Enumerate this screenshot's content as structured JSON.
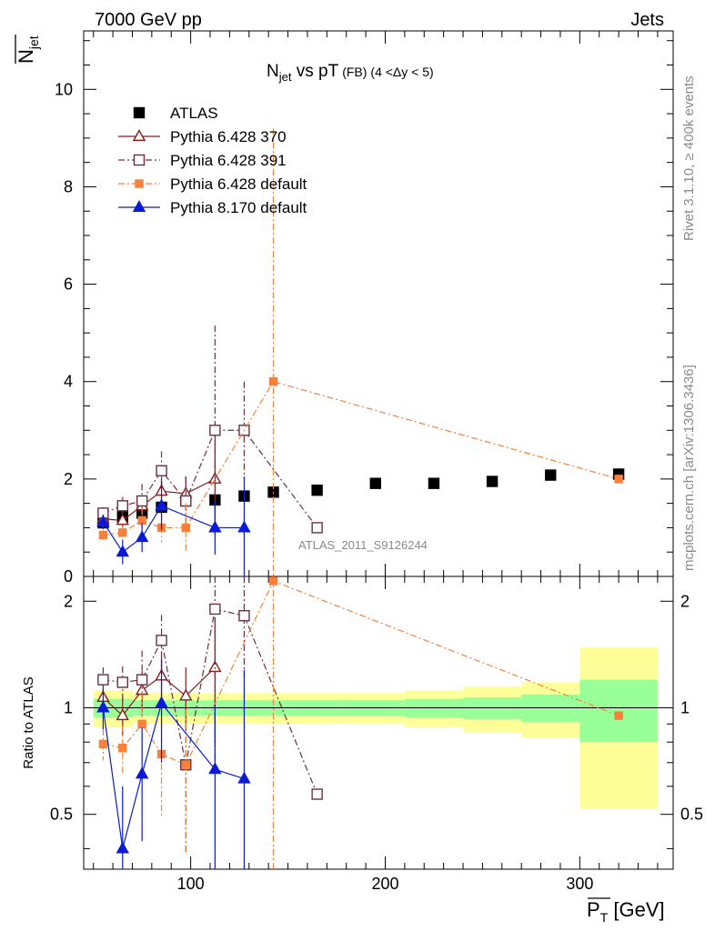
{
  "header": {
    "left": "7000 GeV pp",
    "right": "Jets",
    "side_top": "Rivet 3.1.10, ≥ 400k events",
    "side_bottom": "mcplots.cern.ch [arXiv:1306.3436]",
    "analysis_id": "ATLAS_2011_S9126244"
  },
  "chart_data": [
    {
      "type": "line",
      "title": "N",
      "title_sub": "jet",
      "title_rest": " vs pT",
      "title_fb": "(FB)",
      "title_range": "(4 <Δy < 5)",
      "ylabel_main": "N",
      "ylabel_sub": "jet",
      "xlim": [
        45,
        348
      ],
      "ylim": [
        0,
        11.2
      ],
      "x_ticks": [
        100,
        200,
        300
      ],
      "y_ticks": [
        0,
        2,
        4,
        6,
        8,
        10
      ],
      "y_tick_labels": [
        "0",
        "2",
        "4",
        "6",
        "8",
        "10"
      ],
      "legend_position": "top-left",
      "series": [
        {
          "name": "ATLAS",
          "color": "#000000",
          "marker": "square-filled",
          "x": [
            55,
            65,
            75,
            85,
            97.5,
            112.5,
            127.5,
            142.5,
            165,
            195,
            225,
            255,
            285,
            320
          ],
          "y": [
            1.1,
            1.22,
            1.3,
            1.42,
            1.55,
            1.57,
            1.65,
            1.73,
            1.77,
            1.91,
            1.91,
            1.95,
            2.08,
            2.1
          ],
          "err": [
            0.05,
            0.05,
            0.05,
            0.06,
            0.06,
            0.07,
            0.08,
            0.08,
            0.08,
            0.08,
            0.08,
            0.1,
            0.1,
            0.12
          ]
        },
        {
          "name": "Pythia 6.428 370",
          "color": "#8b1a1a",
          "marker": "triangle-open",
          "x": [
            55,
            65,
            75,
            85,
            97.5,
            112.5
          ],
          "y": [
            1.18,
            1.15,
            1.45,
            1.75,
            1.7,
            2.0
          ],
          "err": [
            0.12,
            0.15,
            0.2,
            0.3,
            0.35,
            0.8
          ]
        },
        {
          "name": "Pythia 6.428 391",
          "color": "#6b3040",
          "marker": "square-open",
          "x": [
            55,
            65,
            75,
            85,
            97.5,
            112.5,
            127.5,
            165
          ],
          "y": [
            1.3,
            1.45,
            1.55,
            2.17,
            1.55,
            3.0,
            3.0,
            1.0
          ],
          "err": [
            0.12,
            0.18,
            0.35,
            0.4,
            0.5,
            2.15,
            1.0,
            0.0
          ]
        },
        {
          "name": "Pythia 6.428 default",
          "color": "#f7813a",
          "marker": "square-filled-small",
          "x": [
            55,
            65,
            75,
            85,
            97.5,
            142.5,
            320
          ],
          "y": [
            0.85,
            0.9,
            1.15,
            1.0,
            1.0,
            4.0,
            2.0
          ],
          "err": [
            0.1,
            0.15,
            0.25,
            0.3,
            0.5,
            5.2,
            0.0
          ]
        },
        {
          "name": "Pythia 8.170 default",
          "color": "#0a1ad6",
          "marker": "triangle-filled",
          "x": [
            55,
            65,
            75,
            85,
            112.5,
            127.5
          ],
          "y": [
            1.12,
            0.5,
            0.8,
            1.45,
            1.0,
            1.0
          ],
          "err": [
            0.15,
            0.25,
            0.3,
            0.5,
            0.55,
            1.05
          ]
        }
      ]
    },
    {
      "type": "line",
      "ylabel": "Ratio to ATLAS",
      "xlabel": "P",
      "xlabel_sub": "T",
      "xlabel_unit": " [GeV]",
      "ylim": [
        0.35,
        2.35
      ],
      "y_ticks": [
        0.5,
        1,
        2
      ],
      "y_tick_labels": [
        "0.5",
        "1",
        "2"
      ],
      "x_tick_labels": [
        "100",
        "200",
        "300"
      ],
      "bands": {
        "bins": [
          [
            50,
            60
          ],
          [
            60,
            70
          ],
          [
            70,
            80
          ],
          [
            80,
            90
          ],
          [
            90,
            105
          ],
          [
            105,
            120
          ],
          [
            120,
            135
          ],
          [
            135,
            150
          ],
          [
            150,
            180
          ],
          [
            180,
            210
          ],
          [
            210,
            240
          ],
          [
            240,
            270
          ],
          [
            270,
            300
          ],
          [
            300,
            340
          ]
        ],
        "green": [
          0.06,
          0.06,
          0.05,
          0.05,
          0.05,
          0.05,
          0.05,
          0.05,
          0.05,
          0.05,
          0.06,
          0.07,
          0.09,
          0.2
        ],
        "yellow": [
          0.12,
          0.12,
          0.1,
          0.1,
          0.1,
          0.1,
          0.1,
          0.1,
          0.1,
          0.1,
          0.12,
          0.15,
          0.18,
          0.48
        ]
      },
      "series": [
        {
          "name": "Pythia 6.428 370",
          "x": [
            55,
            65,
            75,
            85,
            97.5,
            112.5
          ],
          "y": [
            1.07,
            0.95,
            1.12,
            1.23,
            1.08,
            1.3
          ],
          "err": [
            0.1,
            0.12,
            0.15,
            0.2,
            0.22,
            0.5
          ]
        },
        {
          "name": "Pythia 6.428 391",
          "x": [
            55,
            65,
            75,
            85,
            97.5,
            112.5,
            127.5,
            165
          ],
          "y": [
            1.2,
            1.18,
            1.2,
            1.55,
            0.69,
            1.9,
            1.82,
            0.57
          ],
          "err": [
            0.1,
            0.13,
            0.25,
            0.28,
            0.3,
            1.2,
            0.6,
            0.0
          ]
        },
        {
          "name": "Pythia 6.428 default",
          "x": [
            55,
            65,
            75,
            85,
            97.5,
            142.5,
            320
          ],
          "y": [
            0.79,
            0.77,
            0.9,
            0.74,
            0.69,
            2.28,
            0.95
          ],
          "err": [
            0.08,
            0.12,
            0.2,
            0.25,
            0.3,
            3.0,
            0.0
          ]
        },
        {
          "name": "Pythia 8.170 default",
          "x": [
            55,
            65,
            75,
            85,
            112.5,
            127.5
          ],
          "y": [
            1.0,
            0.4,
            0.65,
            1.03,
            0.67,
            0.63
          ],
          "err": [
            0.13,
            0.2,
            0.23,
            0.33,
            0.35,
            0.65
          ]
        }
      ]
    }
  ]
}
